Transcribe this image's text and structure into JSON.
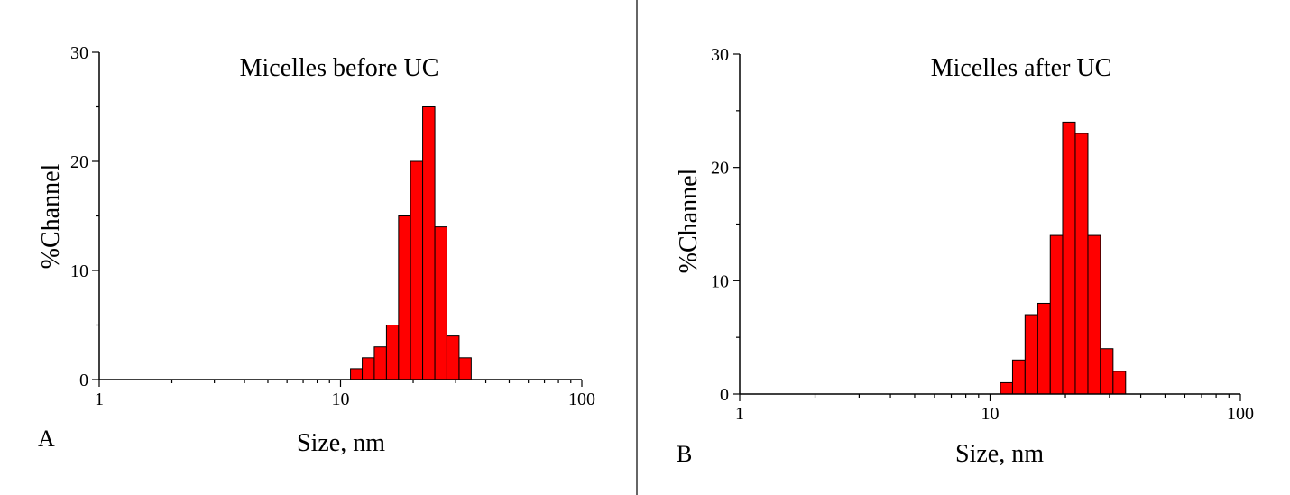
{
  "chart_data": [
    {
      "type": "bar",
      "panel_label": "A",
      "title": "Micelles before UC",
      "xlabel": "Size, nm",
      "ylabel": "%Channel",
      "x_scale": "log",
      "xlim": [
        1,
        100
      ],
      "ylim": [
        0,
        30
      ],
      "x_ticks": [
        "1",
        "10",
        "100"
      ],
      "y_ticks": [
        "0",
        "10",
        "20",
        "30"
      ],
      "bar_color": "#ff0000",
      "bins_nm": [
        11.0,
        12.3,
        13.8,
        15.5,
        17.4,
        19.5,
        21.9,
        24.6,
        27.6,
        31.0,
        34.8,
        39.0
      ],
      "values": [
        1,
        2,
        3,
        5,
        15,
        20,
        25,
        14,
        4,
        2,
        0
      ]
    },
    {
      "type": "bar",
      "panel_label": "B",
      "title": "Micelles after UC",
      "xlabel": "Size, nm",
      "ylabel": "%Channel",
      "x_scale": "log",
      "xlim": [
        1,
        100
      ],
      "ylim": [
        0,
        30
      ],
      "x_ticks": [
        "1",
        "10",
        "100"
      ],
      "y_ticks": [
        "0",
        "10",
        "20",
        "30"
      ],
      "bar_color": "#ff0000",
      "bins_nm": [
        11.0,
        12.3,
        13.8,
        15.5,
        17.4,
        19.5,
        21.9,
        24.6,
        27.6,
        31.0,
        34.8,
        39.0
      ],
      "values": [
        1,
        3,
        7,
        8,
        14,
        24,
        23,
        14,
        4,
        2,
        0
      ]
    }
  ]
}
